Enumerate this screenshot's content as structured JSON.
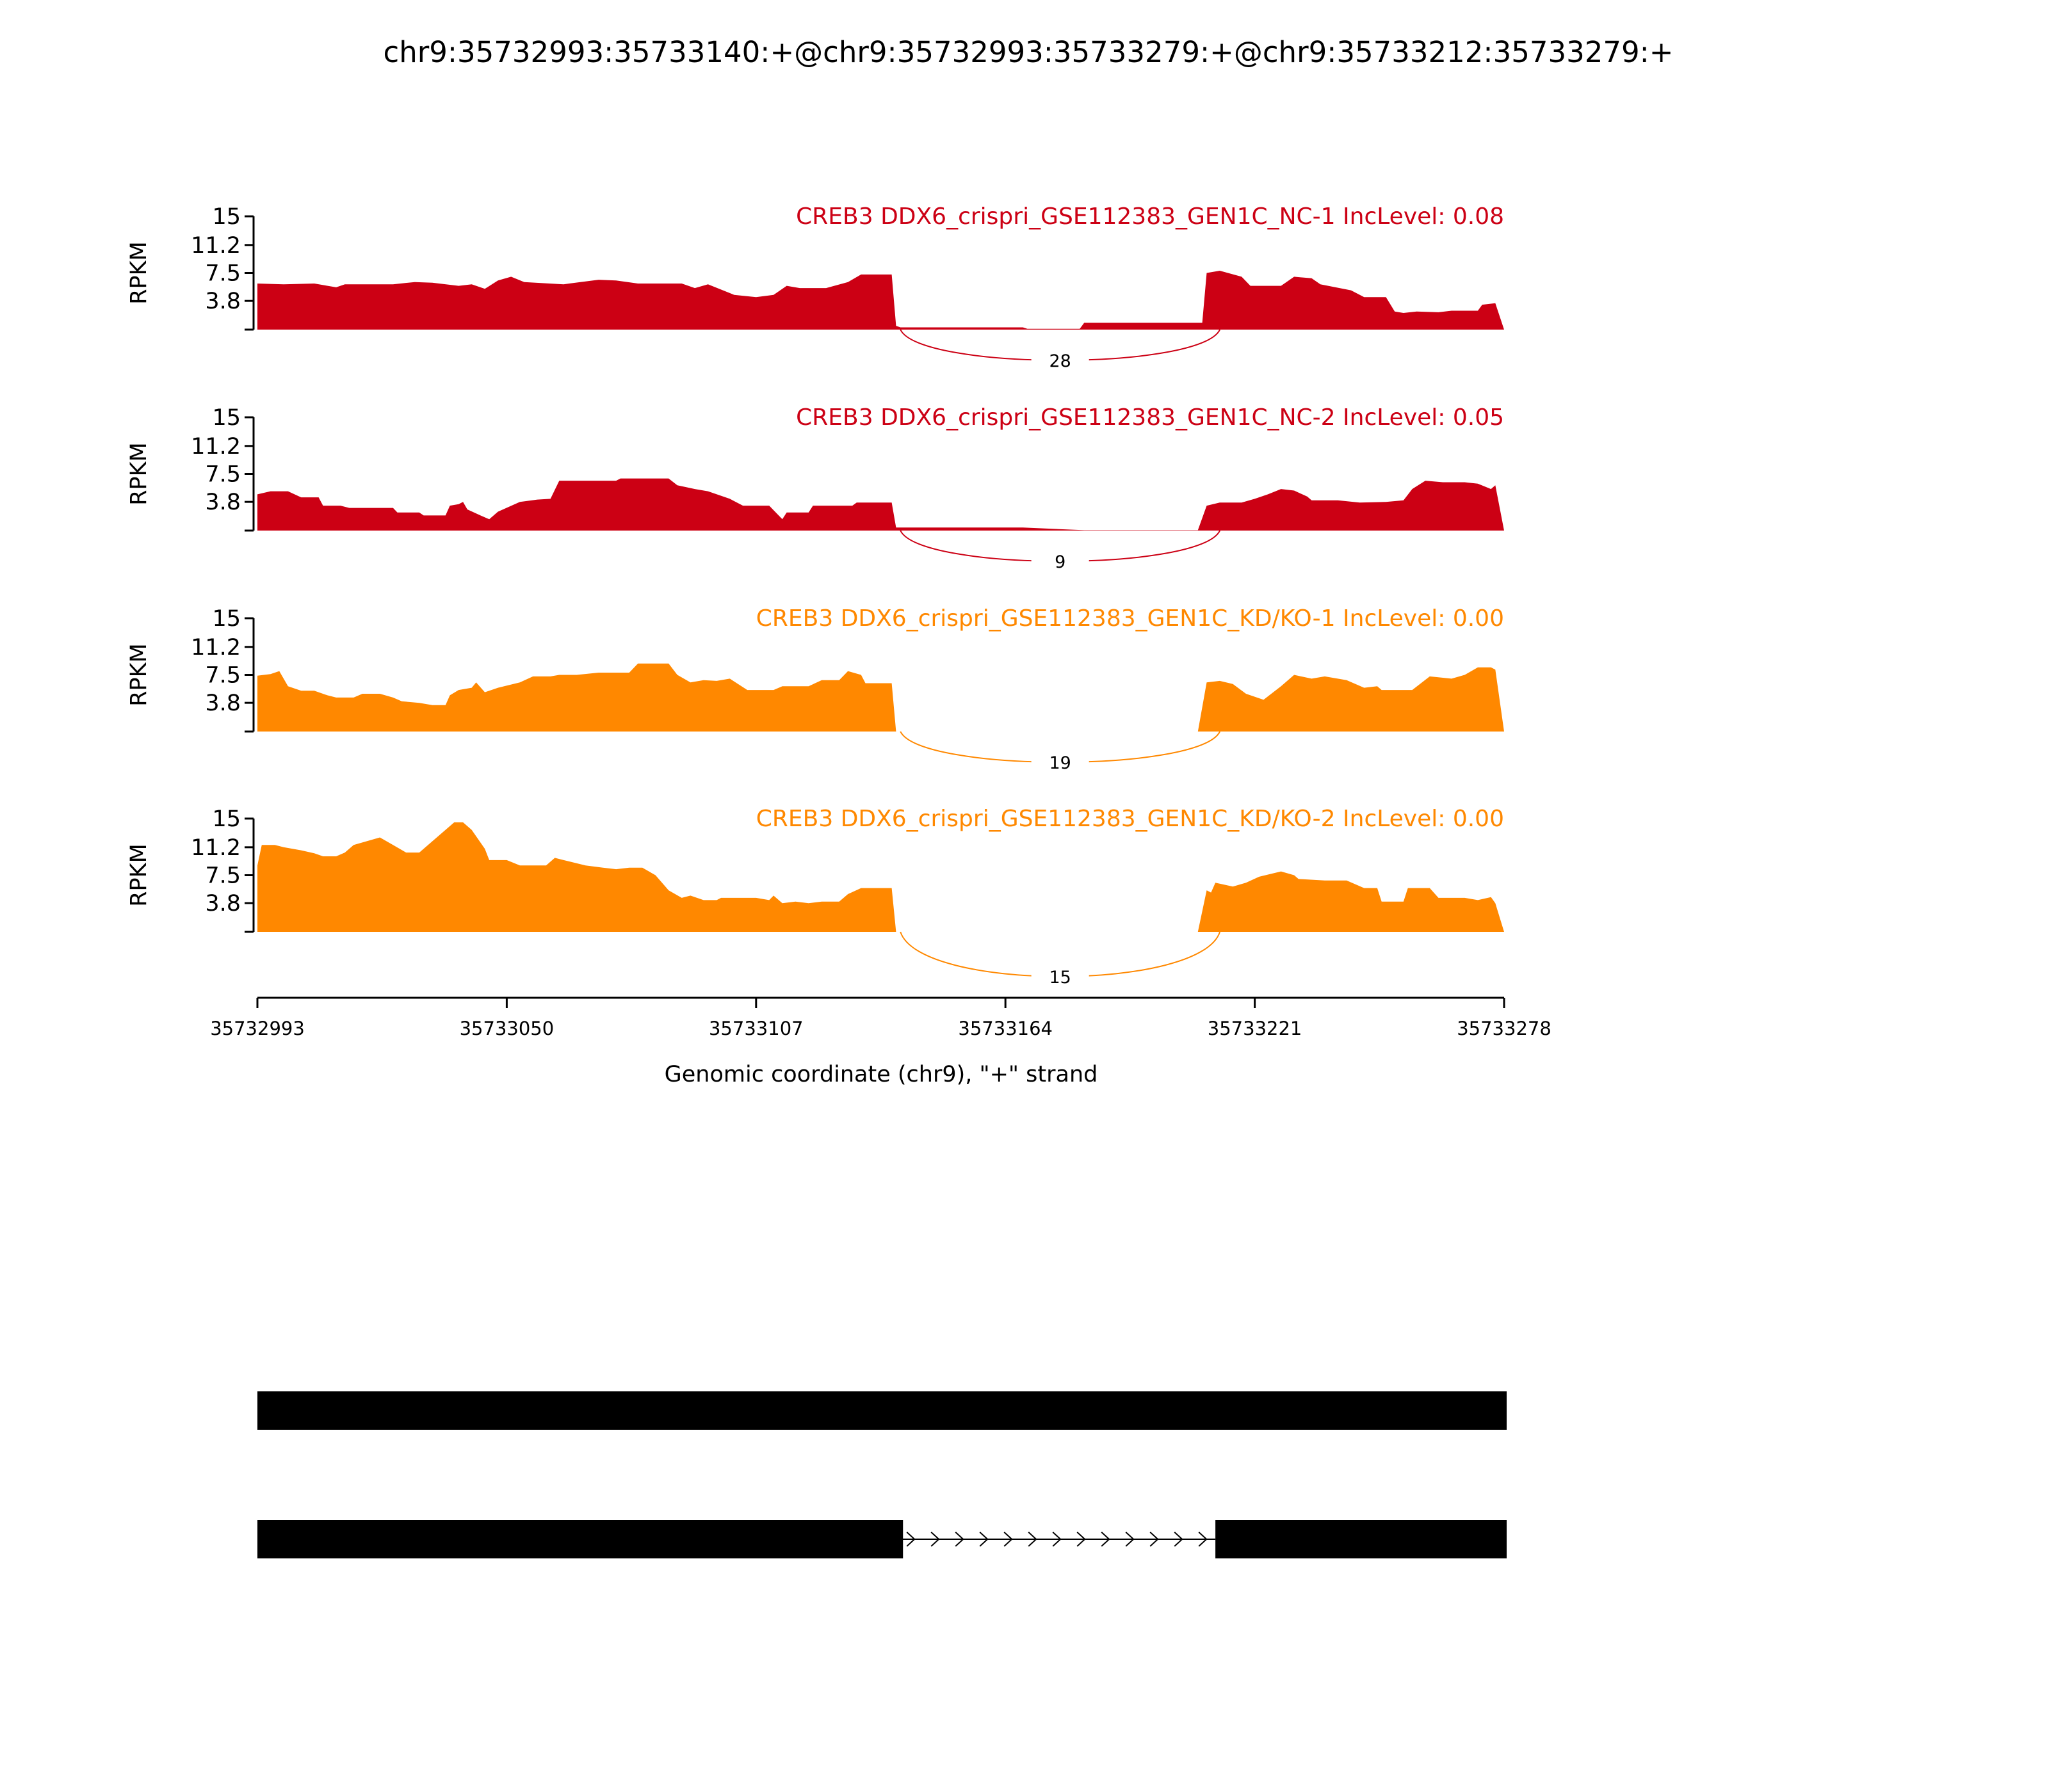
{
  "chart_data": {
    "type": "area",
    "title": "chr9:35732993:35733140:+@chr9:35732993:35733279:+@chr9:35733212:35733279:+",
    "xlabel": "Genomic coordinate (chr9), \"+\" strand",
    "ylabel": "RPKM",
    "x_start": 35732993,
    "xlim": [
      35732993,
      35733278
    ],
    "xticks": [
      "35732993",
      "35733050",
      "35733107",
      "35733164",
      "35733221",
      "35733278"
    ],
    "ylim": [
      0,
      15
    ],
    "yticks": [
      "15",
      "11.2",
      "7.5",
      "3.8"
    ],
    "ytick_values": [
      15,
      11.2,
      7.5,
      3.8
    ],
    "colors": {
      "NC": "#cc0014",
      "KD": "#ff8800"
    },
    "junction": {
      "start": 35733140,
      "end": 35733212
    },
    "series": [
      {
        "name": "CREB3 DDX6_crispri_GSE112383_GEN1C_NC-1 IncLevel: 0.08",
        "color": "#cc0014",
        "junction_count": "28",
        "offsets": [
          0,
          6,
          13,
          18,
          20,
          31,
          36,
          40,
          46,
          49,
          52,
          55,
          58,
          61,
          70,
          78,
          82,
          87,
          97,
          100,
          103,
          109,
          114,
          118,
          121,
          124,
          130,
          135,
          138,
          145,
          146,
          147,
          175,
          176,
          188,
          189,
          216,
          217,
          220,
          225,
          227,
          234,
          237,
          241,
          243,
          250,
          253,
          258,
          260,
          262,
          265,
          270,
          273,
          279,
          280,
          283,
          285
        ],
        "values": [
          6.1,
          6.0,
          6.1,
          5.6,
          6.0,
          6.0,
          6.3,
          6.2,
          5.8,
          6.0,
          5.4,
          6.5,
          7.0,
          6.3,
          6.0,
          6.6,
          6.5,
          6.1,
          6.1,
          5.5,
          6.0,
          4.6,
          4.3,
          4.6,
          5.8,
          5.5,
          5.5,
          6.3,
          7.3,
          7.3,
          0.5,
          0.3,
          0.3,
          0.1,
          0.1,
          0.9,
          0.9,
          7.5,
          7.8,
          7.0,
          5.8,
          5.8,
          7.0,
          6.8,
          6.0,
          5.2,
          4.3,
          4.3,
          2.4,
          2.2,
          2.4,
          2.3,
          2.5,
          2.5,
          3.3,
          3.5,
          0
        ]
      },
      {
        "name": "CREB3 DDX6_crispri_GSE112383_GEN1C_NC-2 IncLevel: 0.05",
        "color": "#cc0014",
        "junction_count": "9",
        "offsets": [
          0,
          3,
          7,
          10,
          14,
          15,
          19,
          21,
          31,
          32,
          37,
          38,
          43,
          44,
          46,
          47,
          48,
          51,
          53,
          55,
          60,
          64,
          67,
          69,
          82,
          83,
          94,
          96,
          100,
          103,
          108,
          111,
          117,
          120,
          121,
          126,
          127,
          136,
          137,
          145,
          146,
          175,
          189,
          215,
          217,
          220,
          225,
          228,
          231,
          234,
          237,
          240,
          241,
          247,
          252,
          258,
          262,
          264,
          267,
          271,
          276,
          279,
          282,
          283,
          285
        ],
        "values": [
          4.8,
          5.2,
          5.2,
          4.4,
          4.4,
          3.3,
          3.3,
          3.0,
          3.0,
          2.4,
          2.4,
          2.0,
          2.0,
          3.3,
          3.5,
          3.8,
          2.8,
          2.0,
          1.5,
          2.5,
          3.8,
          4.1,
          4.2,
          6.6,
          6.6,
          6.9,
          6.9,
          6.0,
          5.5,
          5.2,
          4.2,
          3.3,
          3.3,
          1.5,
          2.4,
          2.4,
          3.3,
          3.3,
          3.7,
          3.7,
          0.4,
          0.4,
          0.05,
          0.05,
          3.3,
          3.7,
          3.7,
          4.2,
          4.8,
          5.5,
          5.3,
          4.5,
          4.0,
          4.0,
          3.7,
          3.8,
          4.0,
          5.5,
          6.6,
          6.4,
          6.4,
          6.2,
          5.5,
          6.0,
          0
        ]
      },
      {
        "name": "CREB3 DDX6_crispri_GSE112383_GEN1C_KD/KO-1 IncLevel: 0.00",
        "color": "#ff8800",
        "junction_count": "19",
        "offsets": [
          0,
          3,
          5,
          7,
          10,
          13,
          16,
          18,
          22,
          24,
          28,
          31,
          33,
          37,
          40,
          43,
          44,
          46,
          49,
          50,
          52,
          55,
          60,
          63,
          67,
          69,
          73,
          78,
          85,
          87,
          94,
          96,
          99,
          102,
          105,
          108,
          112,
          118,
          120,
          126,
          129,
          133,
          135,
          138,
          139,
          145,
          146,
          215,
          217,
          220,
          223,
          226,
          230,
          234,
          237,
          241,
          244,
          249,
          253,
          256,
          257,
          264,
          268,
          273,
          276,
          279,
          282,
          283,
          285
        ],
        "values": [
          7.4,
          7.6,
          8.0,
          6.0,
          5.4,
          5.4,
          4.8,
          4.5,
          4.5,
          5.0,
          5.0,
          4.5,
          4.0,
          3.8,
          3.5,
          3.5,
          4.8,
          5.5,
          5.8,
          6.5,
          5.2,
          5.8,
          6.5,
          7.3,
          7.3,
          7.5,
          7.5,
          7.8,
          7.8,
          9.0,
          9.0,
          7.5,
          6.5,
          6.8,
          6.7,
          7.0,
          5.5,
          5.5,
          6.0,
          6.0,
          6.8,
          6.8,
          8.0,
          7.5,
          6.4,
          6.4,
          0,
          0,
          6.5,
          6.7,
          6.3,
          5.0,
          4.2,
          6.0,
          7.5,
          7.0,
          7.3,
          6.8,
          5.8,
          6.0,
          5.5,
          5.5,
          7.3,
          7.0,
          7.5,
          8.5,
          8.5,
          8.2,
          0
        ]
      },
      {
        "name": "CREB3 DDX6_crispri_GSE112383_GEN1C_KD/KO-2 IncLevel: 0.00",
        "color": "#ff8800",
        "junction_count": "15",
        "offsets": [
          0,
          1,
          4,
          6,
          10,
          13,
          15,
          18,
          20,
          22,
          25,
          28,
          31,
          34,
          37,
          40,
          45,
          47,
          49,
          52,
          53,
          57,
          60,
          66,
          68,
          70,
          75,
          79,
          82,
          85,
          88,
          91,
          94,
          97,
          99,
          102,
          105,
          106,
          114,
          117,
          118,
          120,
          123,
          126,
          129,
          133,
          135,
          138,
          145,
          146,
          215,
          217,
          218,
          219,
          223,
          226,
          229,
          234,
          237,
          238,
          244,
          249,
          253,
          256,
          257,
          262,
          263,
          268,
          270,
          276,
          279,
          282,
          283,
          285
        ],
        "values": [
          8.8,
          11.5,
          11.5,
          11.2,
          10.8,
          10.4,
          10.0,
          10.0,
          10.5,
          11.5,
          12.0,
          12.5,
          11.5,
          10.5,
          10.5,
          12.0,
          14.5,
          14.5,
          13.5,
          11.0,
          9.5,
          9.5,
          8.8,
          8.8,
          9.8,
          9.5,
          8.8,
          8.5,
          8.3,
          8.5,
          8.5,
          7.5,
          5.5,
          4.5,
          4.8,
          4.2,
          4.2,
          4.5,
          4.5,
          4.2,
          4.8,
          3.8,
          4.0,
          3.8,
          4.0,
          4.0,
          5.0,
          5.8,
          5.8,
          0,
          0,
          5.5,
          5.2,
          6.5,
          6.0,
          6.5,
          7.3,
          8.0,
          7.5,
          7.0,
          6.8,
          6.8,
          5.8,
          5.8,
          4.0,
          4.0,
          5.8,
          5.8,
          4.5,
          4.5,
          4.2,
          4.6,
          3.8,
          0
        ]
      }
    ],
    "gene_models": [
      {
        "exons": [
          [
            35732993,
            35733278
          ]
        ]
      },
      {
        "exons": [
          [
            35732993,
            35733140
          ],
          [
            35733212,
            35733278
          ]
        ]
      }
    ]
  }
}
